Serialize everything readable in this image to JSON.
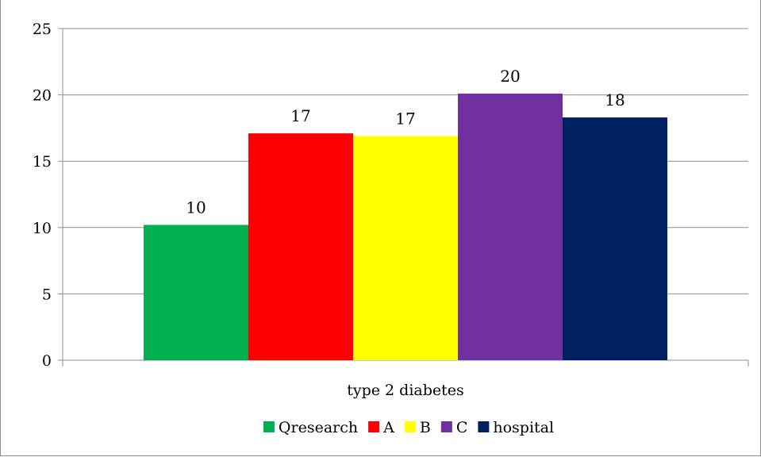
{
  "chart_data": {
    "type": "bar",
    "title": "",
    "xlabel": "",
    "ylabel": "",
    "categories": [
      "type 2 diabetes"
    ],
    "ylim": [
      0,
      25
    ],
    "yticks": [
      0,
      5,
      10,
      15,
      20,
      25
    ],
    "grid": true,
    "legend_position": "bottom",
    "series": [
      {
        "name": "Qresearch",
        "values": [
          10.2
        ],
        "label": "10",
        "color": "#00b050"
      },
      {
        "name": "A",
        "values": [
          17.1
        ],
        "label": "17",
        "color": "#ff0000"
      },
      {
        "name": "B",
        "values": [
          16.9
        ],
        "label": "17",
        "color": "#ffff00"
      },
      {
        "name": "C",
        "values": [
          20.1
        ],
        "label": "20",
        "color": "#7030a0"
      },
      {
        "name": "hospital",
        "values": [
          18.3
        ],
        "label": "18",
        "color": "#002060"
      }
    ]
  }
}
